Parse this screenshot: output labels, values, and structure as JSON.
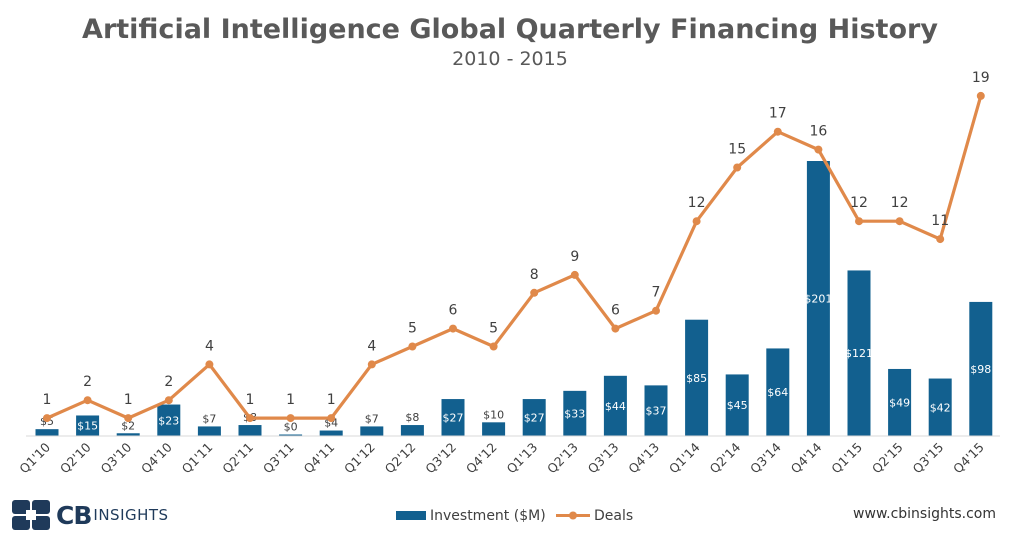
{
  "chart_data": {
    "type": "bar",
    "title": "Artificial Intelligence Global Quarterly Financing History",
    "subtitle": "2010 - 2015",
    "categories": [
      "Q1'10",
      "Q2'10",
      "Q3'10",
      "Q4'10",
      "Q1'11",
      "Q2'11",
      "Q3'11",
      "Q4'11",
      "Q1'12",
      "Q2'12",
      "Q3'12",
      "Q4'12",
      "Q1'13",
      "Q2'13",
      "Q3'13",
      "Q4'13",
      "Q1'14",
      "Q2'14",
      "Q3'14",
      "Q4'14",
      "Q1'15",
      "Q2'15",
      "Q3'15",
      "Q4'15"
    ],
    "series": [
      {
        "name": "Investment ($M)",
        "type": "bar",
        "color": "#12608f",
        "values": [
          5,
          15,
          2,
          23,
          7,
          8,
          0,
          4,
          7,
          8,
          27,
          10,
          27,
          33,
          44,
          37,
          85,
          45,
          64,
          201,
          121,
          49,
          42,
          98
        ],
        "labels": [
          "$5",
          "$15",
          "$2",
          "$23",
          "$7",
          "$8",
          "$0",
          "$4",
          "$7",
          "$8",
          "$27",
          "$10",
          "$27",
          "$33",
          "$44",
          "$37",
          "$85",
          "$45",
          "$64",
          "$201",
          "$121",
          "$49",
          "$42",
          "$98"
        ]
      },
      {
        "name": "Deals",
        "type": "line",
        "color": "#e0894a",
        "values": [
          1,
          2,
          1,
          2,
          4,
          1,
          1,
          1,
          4,
          5,
          6,
          5,
          8,
          9,
          6,
          7,
          12,
          15,
          17,
          16,
          12,
          12,
          11,
          19
        ]
      }
    ],
    "grid": false,
    "legend": "bottom-center"
  },
  "footer": {
    "logo_cb": "CB",
    "logo_insights": "INSIGHTS",
    "url": "www.cbinsights.com"
  }
}
